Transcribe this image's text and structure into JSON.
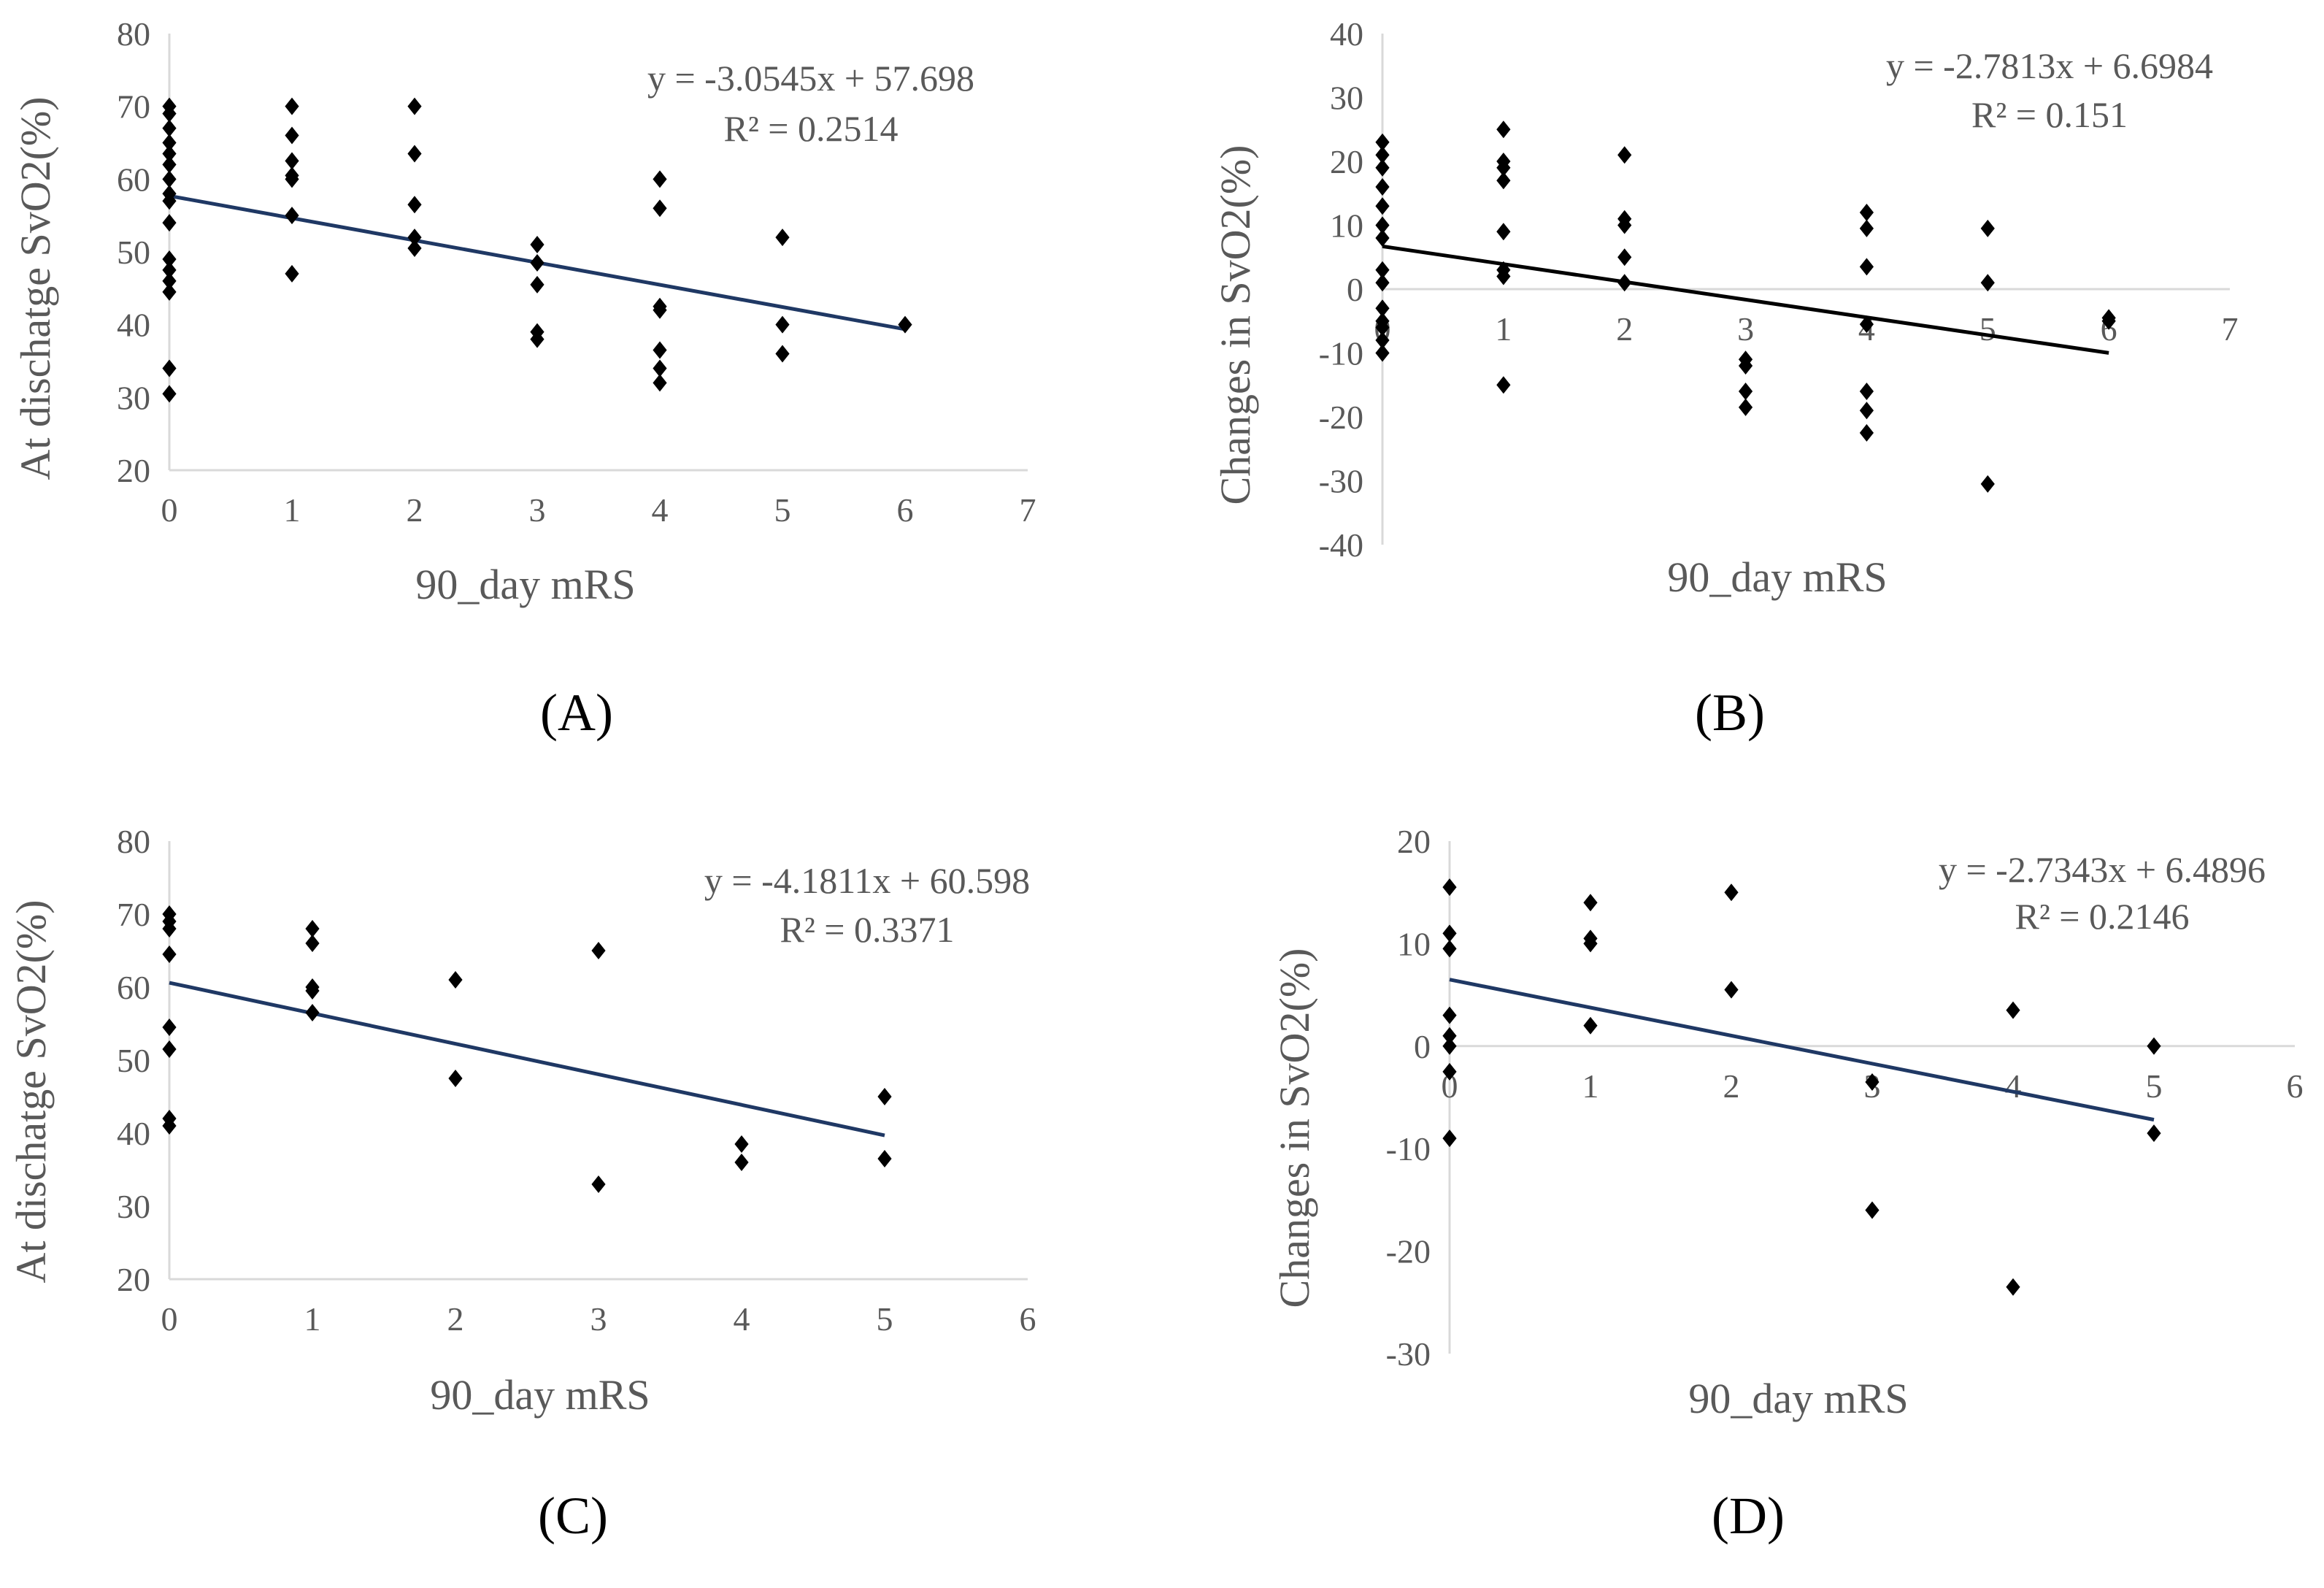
{
  "colors": {
    "axis": "#d9d9d9",
    "tick_text": "#595959",
    "marker": "#000000",
    "trend_black": "#000000",
    "trend_blue": "#1f3864"
  },
  "chart_data": [
    {
      "type": "scatter",
      "panel_label": "(A)",
      "xlabel": "90_day mRS",
      "ylabel": "At dischatge SvO2(%)",
      "xlim": [
        0,
        7
      ],
      "ylim": [
        20,
        80
      ],
      "xticks": [
        "0",
        "1",
        "2",
        "3",
        "4",
        "5",
        "6",
        "7"
      ],
      "yticks": [
        "20",
        "30",
        "40",
        "50",
        "60",
        "70",
        "80"
      ],
      "marker": "diamond",
      "trendline": {
        "slope": -3.0545,
        "intercept": 57.698,
        "x_range": [
          0,
          6
        ],
        "color": "#1f3864",
        "equation": "y = -3.0545x + 57.698",
        "r2": "R² = 0.2514"
      },
      "points": [
        [
          0,
          70
        ],
        [
          0,
          69
        ],
        [
          0,
          67
        ],
        [
          0,
          65
        ],
        [
          0,
          63.5
        ],
        [
          0,
          62
        ],
        [
          0,
          60
        ],
        [
          0,
          58
        ],
        [
          0,
          57
        ],
        [
          0,
          54
        ],
        [
          0,
          49
        ],
        [
          0,
          47.5
        ],
        [
          0,
          46
        ],
        [
          0,
          44.5
        ],
        [
          0,
          34
        ],
        [
          0,
          30.5
        ],
        [
          1,
          70
        ],
        [
          1,
          66
        ],
        [
          1,
          62.5
        ],
        [
          1,
          60.5
        ],
        [
          1,
          60
        ],
        [
          1,
          55
        ],
        [
          1,
          47
        ],
        [
          2,
          70
        ],
        [
          2,
          63.5
        ],
        [
          2,
          56.5
        ],
        [
          2,
          52
        ],
        [
          2,
          50.5
        ],
        [
          3,
          51
        ],
        [
          3,
          48.5
        ],
        [
          3,
          45.5
        ],
        [
          3,
          39
        ],
        [
          3,
          38
        ],
        [
          4,
          60
        ],
        [
          4,
          56
        ],
        [
          4,
          42.5
        ],
        [
          4,
          42
        ],
        [
          4,
          36.5
        ],
        [
          4,
          34
        ],
        [
          4,
          32
        ],
        [
          5,
          52
        ],
        [
          5,
          40
        ],
        [
          5,
          36
        ],
        [
          6,
          40
        ]
      ]
    },
    {
      "type": "scatter",
      "panel_label": "(B)",
      "xlabel": "90_day mRS",
      "ylabel": "Changes in SvO2(%)",
      "xlim": [
        0,
        7
      ],
      "ylim": [
        -40,
        40
      ],
      "xticks": [
        "0",
        "1",
        "2",
        "3",
        "4",
        "5",
        "6",
        "7"
      ],
      "yticks": [
        "-40",
        "-30",
        "-20",
        "-10",
        "0",
        "10",
        "20",
        "30",
        "40"
      ],
      "marker": "diamond",
      "trendline": {
        "slope": -2.7813,
        "intercept": 6.6984,
        "x_range": [
          0,
          6
        ],
        "color": "#000000",
        "equation": "y = -2.7813x + 6.6984",
        "r2": "R² = 0.151"
      },
      "points": [
        [
          0,
          23
        ],
        [
          0,
          21
        ],
        [
          0,
          19
        ],
        [
          0,
          16
        ],
        [
          0,
          13
        ],
        [
          0,
          10
        ],
        [
          0,
          8
        ],
        [
          0,
          3
        ],
        [
          0,
          1
        ],
        [
          0,
          -3
        ],
        [
          0,
          -5
        ],
        [
          0,
          -6
        ],
        [
          0,
          -8
        ],
        [
          0,
          -10
        ],
        [
          1,
          25
        ],
        [
          1,
          20
        ],
        [
          1,
          19
        ],
        [
          1,
          17
        ],
        [
          1,
          9
        ],
        [
          1,
          3
        ],
        [
          1,
          2
        ],
        [
          1,
          -15
        ],
        [
          2,
          21
        ],
        [
          2,
          11
        ],
        [
          2,
          10
        ],
        [
          2,
          5
        ],
        [
          2,
          1
        ],
        [
          3,
          -11
        ],
        [
          3,
          -12
        ],
        [
          3,
          -16
        ],
        [
          3,
          -18.5
        ],
        [
          4,
          12
        ],
        [
          4,
          9.5
        ],
        [
          4,
          3.5
        ],
        [
          4,
          -5.5
        ],
        [
          4,
          -16
        ],
        [
          4,
          -19
        ],
        [
          4,
          -22.5
        ],
        [
          5,
          9.5
        ],
        [
          5,
          1
        ],
        [
          5,
          -30.5
        ],
        [
          6,
          -5
        ],
        [
          6,
          -4.5
        ]
      ]
    },
    {
      "type": "scatter",
      "panel_label": "(C)",
      "xlabel": "90_day mRS",
      "ylabel": "At dischatge SvO2(%)",
      "xlim": [
        0,
        6
      ],
      "ylim": [
        20,
        80
      ],
      "xticks": [
        "0",
        "1",
        "2",
        "3",
        "4",
        "5",
        "6"
      ],
      "yticks": [
        "20",
        "30",
        "40",
        "50",
        "60",
        "70",
        "80"
      ],
      "marker": "diamond",
      "trendline": {
        "slope": -4.1811,
        "intercept": 60.598,
        "x_range": [
          0,
          5
        ],
        "color": "#1f3864",
        "equation": "y = -4.1811x + 60.598",
        "r2": "R² = 0.3371"
      },
      "points": [
        [
          0,
          70
        ],
        [
          0,
          69
        ],
        [
          0,
          68
        ],
        [
          0,
          64.5
        ],
        [
          0,
          54.5
        ],
        [
          0,
          51.5
        ],
        [
          0,
          42
        ],
        [
          0,
          41
        ],
        [
          1,
          68
        ],
        [
          1,
          66
        ],
        [
          1,
          60
        ],
        [
          1,
          59.5
        ],
        [
          1,
          56.5
        ],
        [
          2,
          61
        ],
        [
          2,
          47.5
        ],
        [
          3,
          65
        ],
        [
          3,
          33
        ],
        [
          4,
          38.5
        ],
        [
          4,
          36
        ],
        [
          5,
          45
        ],
        [
          5,
          36.5
        ]
      ]
    },
    {
      "type": "scatter",
      "panel_label": "(D)",
      "xlabel": "90_day mRS",
      "ylabel": "Changes in SvO2(%)",
      "xlim": [
        0,
        6
      ],
      "ylim": [
        -30,
        20
      ],
      "xticks": [
        "0",
        "1",
        "2",
        "3",
        "4",
        "5",
        "6"
      ],
      "yticks": [
        "-30",
        "-20",
        "-10",
        "0",
        "10",
        "20"
      ],
      "marker": "diamond",
      "trendline": {
        "slope": -2.7343,
        "intercept": 6.4896,
        "x_range": [
          0,
          5
        ],
        "color": "#1f3864",
        "equation": "y = -2.7343x + 6.4896",
        "r2": "R² = 0.2146"
      },
      "points": [
        [
          0,
          15.5
        ],
        [
          0,
          11
        ],
        [
          0,
          9.5
        ],
        [
          0,
          3
        ],
        [
          0,
          1
        ],
        [
          0,
          0
        ],
        [
          0,
          -2.5
        ],
        [
          0,
          -9
        ],
        [
          1,
          14
        ],
        [
          1,
          10.5
        ],
        [
          1,
          10
        ],
        [
          1,
          2
        ],
        [
          2,
          15
        ],
        [
          2,
          5.5
        ],
        [
          3,
          -3.5
        ],
        [
          3,
          -16
        ],
        [
          4,
          3.5
        ],
        [
          4,
          -23.5
        ],
        [
          5,
          0
        ],
        [
          5,
          -8.5
        ]
      ]
    }
  ]
}
